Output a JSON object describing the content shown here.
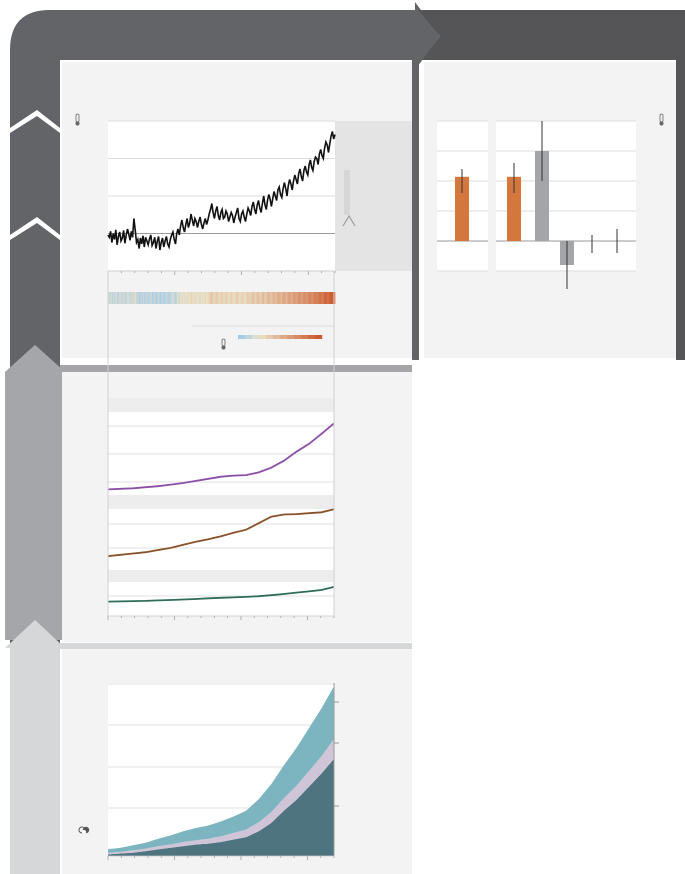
{
  "colors": {
    "frame_dark": "#636468",
    "frame_darker": "#555557",
    "frame_mid": "#a5a6a9",
    "frame_light": "#d6d7d8",
    "panel_bg": "#f3f3f3",
    "plot_bg": "#ffffff",
    "temp_line": "#111111",
    "co2": "#8b4fa8",
    "ch4": "#8a5128",
    "n2o": "#2f6e55",
    "emissions_dark": "#4e7480",
    "emissions_mid": "#cfc4d8",
    "emissions_light": "#7cb5bf",
    "bar_warm": "#d4773d",
    "bar_gray": "#a3a5a8",
    "stripes_cold": "#a6cbe8",
    "stripes_warm": "#cd5a2e"
  },
  "icons": {
    "thermometer": "thermometer-icon",
    "emissions": "smoke-cloud-icon"
  },
  "chart_data": [
    {
      "type": "line",
      "panel": "observed-temperature",
      "x_range": [
        1850,
        2020
      ],
      "ylim": [
        -0.5,
        1.5
      ],
      "grid": true,
      "series": [
        {
          "values": [
            -0.02,
            -0.05,
            0.03,
            -0.12,
            0.0,
            -0.08,
            0.05,
            -0.15,
            -0.04,
            0.02,
            -0.1,
            -0.06,
            0.04,
            -0.13,
            -0.02,
            0.06,
            -0.01,
            -0.09,
            0.03,
            -0.05,
            0.2,
            0.05,
            -0.12,
            -0.08,
            -0.2,
            -0.06,
            -0.14,
            -0.03,
            -0.18,
            -0.05,
            -0.1,
            -0.15,
            -0.07,
            -0.02,
            -0.16,
            -0.12,
            -0.05,
            -0.2,
            -0.1,
            -0.04,
            -0.22,
            -0.12,
            -0.06,
            -0.18,
            -0.1,
            -0.04,
            -0.14,
            -0.18,
            -0.08,
            -0.02,
            0.02,
            -0.08,
            -0.14,
            0.0,
            0.06,
            -0.02,
            0.1,
            0.18,
            0.08,
            0.02,
            0.12,
            0.2,
            0.08,
            0.14,
            0.26,
            0.18,
            0.1,
            0.2,
            0.16,
            0.08,
            0.16,
            0.22,
            0.12,
            0.06,
            0.14,
            0.2,
            0.12,
            0.18,
            0.26,
            0.32,
            0.4,
            0.28,
            0.2,
            0.3,
            0.36,
            0.24,
            0.18,
            0.28,
            0.32,
            0.2,
            0.22,
            0.3,
            0.26,
            0.16,
            0.22,
            0.28,
            0.24,
            0.14,
            0.22,
            0.28,
            0.34,
            0.2,
            0.16,
            0.26,
            0.3,
            0.22,
            0.16,
            0.26,
            0.34,
            0.3,
            0.24,
            0.36,
            0.42,
            0.32,
            0.26,
            0.38,
            0.44,
            0.34,
            0.28,
            0.4,
            0.5,
            0.38,
            0.32,
            0.44,
            0.52,
            0.46,
            0.36,
            0.46,
            0.56,
            0.5,
            0.44,
            0.58,
            0.62,
            0.52,
            0.48,
            0.6,
            0.68,
            0.6,
            0.5,
            0.64,
            0.72,
            0.66,
            0.58,
            0.7,
            0.78,
            0.72,
            0.66,
            0.8,
            0.86,
            0.76,
            0.7,
            0.84,
            0.9,
            0.82,
            0.78,
            0.92,
            0.98,
            0.88,
            0.84,
            0.96,
            1.02,
            1.0,
            0.92,
            1.06,
            1.12,
            1.04,
            1.0,
            1.14,
            1.22,
            1.18,
            1.08,
            1.2,
            1.3,
            1.36,
            1.26,
            1.32
          ]
        }
      ]
    },
    {
      "type": "bar",
      "panel": "attributed-warming",
      "ylim": [
        -0.5,
        2.0
      ],
      "grid": true,
      "values": [
        1.07,
        1.07,
        1.5,
        -0.4,
        0.0,
        0.0
      ],
      "error_low": [
        0.8,
        0.8,
        1.0,
        -0.8,
        -0.2,
        -0.2
      ],
      "error_high": [
        1.2,
        1.3,
        2.0,
        0.0,
        0.1,
        0.2
      ],
      "colors": [
        "warm",
        "warm",
        "gray",
        "gray",
        "none",
        "none"
      ]
    },
    {
      "type": "heatmap",
      "panel": "warming-stripes",
      "x_range": [
        1850,
        2020
      ],
      "values": [
        0.05,
        0.02,
        0.1,
        -0.05,
        0.06,
        0.0,
        0.12,
        -0.08,
        0.04,
        0.08,
        -0.02,
        0.02,
        0.1,
        -0.06,
        0.04,
        0.12,
        0.06,
        -0.02,
        0.08,
        0.02,
        0.3,
        0.12,
        -0.05,
        0.0,
        -0.12,
        0.02,
        -0.08,
        0.04,
        -0.1,
        0.02,
        -0.03,
        -0.08,
        0.0,
        0.04,
        -0.1,
        -0.05,
        0.02,
        -0.14,
        -0.03,
        0.03,
        -0.15,
        -0.05,
        0.01,
        -0.12,
        -0.03,
        0.03,
        -0.07,
        -0.11,
        -0.01,
        0.05,
        0.1,
        0.0,
        -0.07,
        0.08,
        0.14,
        0.06,
        0.18,
        0.26,
        0.16,
        0.1,
        0.2,
        0.28,
        0.16,
        0.22,
        0.34,
        0.26,
        0.18,
        0.28,
        0.24,
        0.16,
        0.24,
        0.3,
        0.2,
        0.14,
        0.22,
        0.28,
        0.2,
        0.26,
        0.34,
        0.4,
        0.48,
        0.36,
        0.28,
        0.38,
        0.44,
        0.32,
        0.26,
        0.36,
        0.4,
        0.28,
        0.3,
        0.38,
        0.34,
        0.24,
        0.3,
        0.36,
        0.32,
        0.22,
        0.3,
        0.36,
        0.42,
        0.28,
        0.24,
        0.34,
        0.38,
        0.3,
        0.24,
        0.34,
        0.42,
        0.38,
        0.32,
        0.44,
        0.5,
        0.4,
        0.34,
        0.46,
        0.52,
        0.42,
        0.36,
        0.48,
        0.58,
        0.46,
        0.4,
        0.52,
        0.6,
        0.54,
        0.44,
        0.54,
        0.64,
        0.58,
        0.52,
        0.66,
        0.7,
        0.6,
        0.56,
        0.68,
        0.76,
        0.68,
        0.58,
        0.72,
        0.8,
        0.74,
        0.66,
        0.78,
        0.86,
        0.8,
        0.74,
        0.88,
        0.94,
        0.84,
        0.78,
        0.92,
        0.98,
        0.9,
        0.86,
        1.0,
        1.06,
        0.96,
        0.92,
        1.04,
        1.1,
        1.08,
        1.0,
        1.14,
        1.2,
        1.12,
        1.08,
        1.22,
        1.3,
        1.26,
        1.16,
        1.28,
        1.38,
        1.44,
        1.34,
        1.4
      ]
    },
    {
      "type": "line",
      "panel": "greenhouse-gas-concentrations",
      "x_range": [
        1850,
        2020
      ],
      "series": [
        {
          "values": [
            285,
            286,
            287,
            289,
            291,
            294,
            297,
            301,
            305,
            309,
            311,
            312,
            317,
            326,
            339,
            356,
            371,
            390,
            410
          ]
        },
        {
          "values": [
            790,
            820,
            850,
            880,
            930,
            980,
            1050,
            1120,
            1180,
            1250,
            1330,
            1400,
            1550,
            1700,
            1750,
            1760,
            1780,
            1800,
            1870
          ]
        },
        {
          "values": [
            270,
            271,
            272,
            273,
            275,
            277,
            279,
            281,
            284,
            286,
            288,
            290,
            293,
            297,
            302,
            308,
            313,
            319,
            332
          ]
        }
      ]
    },
    {
      "type": "area",
      "panel": "emissions",
      "x_range": [
        1850,
        2020
      ],
      "series": [
        {
          "values": [
            2,
            3,
            4,
            6,
            8,
            10,
            12,
            14,
            15,
            17,
            20,
            23,
            30,
            40,
            55,
            68,
            84,
            100,
            118
          ]
        },
        {
          "values": [
            2,
            2,
            3,
            3,
            4,
            4,
            5,
            5,
            6,
            7,
            8,
            9,
            11,
            13,
            15,
            17,
            19,
            21,
            24
          ]
        },
        {
          "values": [
            4,
            5,
            6,
            7,
            9,
            11,
            13,
            15,
            16,
            18,
            20,
            23,
            28,
            34,
            40,
            46,
            52,
            58,
            64
          ]
        }
      ]
    }
  ]
}
